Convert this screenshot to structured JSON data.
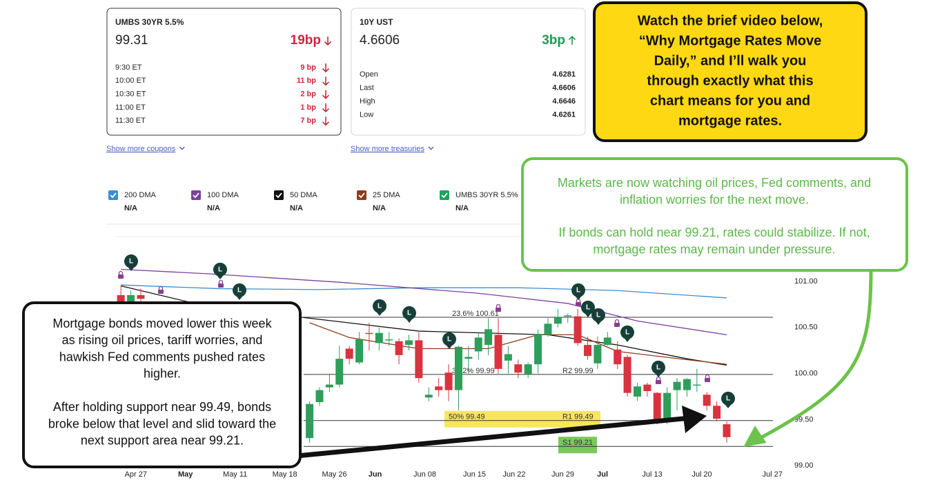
{
  "cards": [
    {
      "title": "UMBS 30YR 5.5%",
      "price": "99.31",
      "change": "19bp",
      "direction": "down",
      "rows": [
        [
          "9:30 ET",
          "9 bp"
        ],
        [
          "10:00 ET",
          "11 bp"
        ],
        [
          "10:30 ET",
          "2 bp"
        ],
        [
          "11:00 ET",
          "1 bp"
        ],
        [
          "11:30 ET",
          "7 bp"
        ]
      ],
      "link": "Show more coupons"
    },
    {
      "title": "10Y UST",
      "price": "4.6606",
      "change": "3bp",
      "direction": "up",
      "rows": [
        [
          "Open",
          "4.6281"
        ],
        [
          "Last",
          "4.6606"
        ],
        [
          "High",
          "4.6646"
        ],
        [
          "Low",
          "4.6261"
        ]
      ],
      "link": "Show more treasuries"
    }
  ],
  "callouts": {
    "video": [
      [
        "Watch the brief video below,",
        "“Why Mortgage Rates Move",
        "Daily,” and I’ll walk you",
        "through exactly what this",
        "chart means for you and",
        "mortgage rates."
      ]
    ],
    "outlook": [
      [
        "Markets are now watching oil prices, Fed comments, and",
        "inflation worries for the next move."
      ],
      [
        "If bonds can hold near 99.21, rates could stabilize. If not,",
        "mortgage rates may remain under pressure."
      ]
    ],
    "summary": [
      [
        "Mortgage bonds moved lower this week",
        "as rising oil prices, tariff worries, and",
        "hawkish Fed comments pushed rates",
        "higher."
      ],
      [
        "After holding support near 99.49, bonds",
        "broke below that level and slid toward the",
        "next support area near 99.21."
      ]
    ]
  },
  "chart_data": {
    "type": "candlestick",
    "legend_value": "N/A",
    "marker_label": "L",
    "xlim": [
      -0.5,
      66.7
    ],
    "xticks": [
      {
        "value": 1.5,
        "label": "Apr 27"
      },
      {
        "value": 6.5,
        "label": "May"
      },
      {
        "value": 11.5,
        "label": "May 11"
      },
      {
        "value": 16.5,
        "label": "May 18"
      },
      {
        "value": 21.5,
        "label": "May 26"
      },
      {
        "value": 25.6,
        "label": "Jun"
      },
      {
        "value": 30.6,
        "label": "Jun 08"
      },
      {
        "value": 35.6,
        "label": "Jun 15"
      },
      {
        "value": 39.6,
        "label": "Jun 22"
      },
      {
        "value": 44.5,
        "label": "Jun 29"
      },
      {
        "value": 48.5,
        "label": "Jul"
      },
      {
        "value": 53.5,
        "label": "Jul 13"
      },
      {
        "value": 58.5,
        "label": "Jul 20"
      },
      {
        "value": 65.6,
        "label": "Jul 27"
      }
    ],
    "ylim": [
      98.89,
      101.47
    ],
    "yticks": [
      {
        "value": 99,
        "label": "99.00"
      },
      {
        "value": 99.5,
        "label": "99.50"
      },
      {
        "value": 100,
        "label": "100.00"
      },
      {
        "value": 100.5,
        "label": "100.50"
      },
      {
        "value": 101,
        "label": "101.00"
      }
    ],
    "grid": false,
    "up_color": "#2e9e5b",
    "down_color": "#d9333f",
    "candles": {
      "name": "UMBS 30YR 5.5%",
      "color": "#1aa260",
      "x": [
        0,
        1,
        2,
        19,
        20,
        21,
        22,
        23,
        24,
        25,
        26,
        27,
        28,
        29,
        30,
        31,
        32,
        33,
        34,
        35,
        36,
        37,
        38,
        39,
        40,
        41,
        42,
        43,
        44,
        45,
        46,
        47,
        48,
        49,
        50,
        51,
        52,
        53,
        54,
        55,
        56,
        57,
        58,
        59,
        60,
        61
      ],
      "open": [
        100.85,
        100.78,
        100.85,
        99.3,
        99.69,
        99.85,
        99.88,
        100.27,
        100.12,
        100.44,
        100.33,
        100.36,
        100.35,
        100.31,
        100.36,
        99.74,
        99.86,
        100.01,
        99.82,
        100.16,
        100.24,
        100.31,
        100.42,
        100.14,
        100.1,
        99.99,
        100.1,
        100.42,
        100.54,
        100.63,
        100.62,
        100.31,
        100.11,
        100.31,
        100.26,
        100.18,
        99.75,
        99.88,
        99.79,
        99.5,
        99.82,
        99.82,
        99.88,
        99.77,
        99.65,
        99.45
      ],
      "high": [
        100.95,
        100.9,
        100.92,
        99.7,
        99.85,
        100.0,
        100.3,
        100.3,
        100.45,
        100.55,
        100.5,
        100.45,
        100.38,
        100.42,
        100.45,
        99.85,
        99.95,
        100.1,
        100.3,
        100.3,
        100.45,
        100.6,
        100.6,
        100.3,
        100.15,
        100.12,
        100.48,
        100.6,
        100.7,
        100.65,
        100.7,
        100.4,
        100.4,
        100.45,
        100.35,
        100.2,
        99.9,
        99.9,
        99.8,
        99.85,
        99.95,
        99.95,
        100.05,
        99.8,
        99.7,
        99.48
      ],
      "low": [
        100.7,
        100.7,
        100.75,
        99.25,
        99.65,
        99.8,
        99.85,
        100.1,
        100.1,
        100.25,
        100.25,
        100.3,
        100.1,
        100.25,
        99.9,
        99.7,
        99.75,
        99.7,
        99.6,
        100.0,
        100.15,
        100.2,
        100.0,
        100.0,
        99.95,
        99.95,
        100.0,
        100.4,
        100.5,
        100.55,
        100.3,
        100.15,
        100.05,
        100.3,
        100.05,
        99.75,
        99.7,
        99.75,
        99.45,
        99.45,
        99.6,
        99.75,
        99.8,
        99.6,
        99.48,
        99.25
      ],
      "close": [
        100.78,
        100.85,
        100.81,
        99.67,
        99.82,
        99.88,
        100.16,
        100.16,
        100.37,
        100.43,
        100.44,
        100.37,
        100.2,
        100.36,
        99.95,
        99.77,
        99.82,
        99.82,
        100.29,
        100.18,
        100.39,
        100.48,
        100.05,
        100.21,
        100.01,
        100.1,
        100.43,
        100.54,
        100.61,
        100.63,
        100.33,
        100.19,
        100.31,
        100.39,
        100.1,
        99.79,
        99.86,
        99.81,
        99.5,
        99.79,
        99.91,
        99.94,
        99.88,
        99.65,
        99.51,
        99.31
      ]
    },
    "series": [
      {
        "name": "200 DMA",
        "color": "#3b8dd0",
        "x": [
          0,
          10,
          20,
          30,
          40,
          50,
          61
        ],
        "values": [
          100.96,
          100.92,
          100.91,
          100.93,
          100.93,
          100.9,
          100.82
        ]
      },
      {
        "name": "100 DMA",
        "color": "#7b3fa0",
        "x": [
          0,
          9,
          22,
          36,
          45,
          52,
          61
        ],
        "values": [
          101.13,
          101.08,
          100.99,
          100.87,
          100.76,
          100.57,
          100.42
        ]
      },
      {
        "name": "50 DMA",
        "color": "#111111",
        "x": [
          0,
          9,
          19,
          30,
          43,
          50,
          57,
          61
        ],
        "values": [
          100.95,
          100.72,
          100.6,
          100.46,
          100.42,
          100.31,
          100.16,
          100.09
        ]
      },
      {
        "name": "25 DMA",
        "color": "#8b3d1e",
        "x": [
          19,
          23,
          30,
          37,
          42,
          46,
          50,
          57,
          61
        ],
        "values": [
          100.55,
          100.39,
          100.27,
          100.27,
          100.42,
          100.42,
          100.24,
          100.15,
          100.1
        ]
      }
    ],
    "levels": [
      {
        "value": 100.61,
        "labels": [
          "23.6% 100.61"
        ]
      },
      {
        "value": 99.99,
        "labels": [
          "38.2% 99.99",
          "R2 99.99"
        ]
      },
      {
        "value": 99.49,
        "labels": [
          "50% 99.49",
          "R1 99.49"
        ],
        "highlight": "#f7e34a"
      },
      {
        "value": 99.21,
        "labels": [
          "S1 99.21"
        ],
        "highlight": "#6cc24a"
      }
    ]
  }
}
